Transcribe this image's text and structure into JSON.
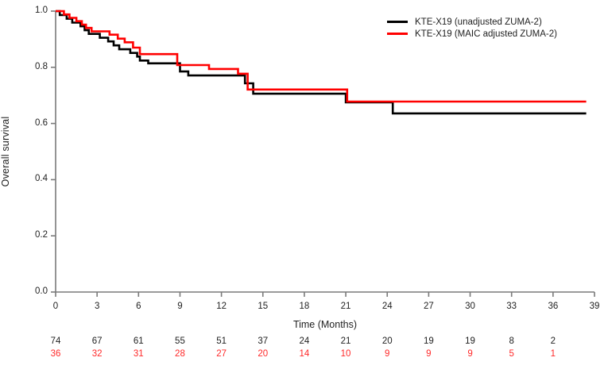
{
  "chart_data": {
    "type": "line",
    "subtype": "kaplan-meier-step",
    "title": "",
    "xlabel": "Time (Months)",
    "ylabel": "Overall survival",
    "xlim": [
      0,
      39
    ],
    "ylim": [
      0.0,
      1.0
    ],
    "grid": false,
    "legend_position": "top-right",
    "x_ticks": [
      "0",
      "3",
      "6",
      "9",
      "12",
      "15",
      "18",
      "21",
      "24",
      "27",
      "30",
      "33",
      "36",
      "39"
    ],
    "y_ticks": [
      "1.0",
      "0.8",
      "0.6",
      "0.4",
      "0.2",
      "0.0"
    ],
    "curve_end_month": 38.4,
    "series": [
      {
        "name": "KTE-X19 (unadjusted ZUMA-2)",
        "color": "#000000",
        "steps": [
          [
            0.0,
            1.0
          ],
          [
            0.3,
            0.986
          ],
          [
            0.8,
            0.973
          ],
          [
            1.2,
            0.959
          ],
          [
            1.8,
            0.946
          ],
          [
            2.1,
            0.932
          ],
          [
            2.4,
            0.919
          ],
          [
            3.2,
            0.905
          ],
          [
            3.8,
            0.892
          ],
          [
            4.2,
            0.878
          ],
          [
            4.6,
            0.864
          ],
          [
            5.4,
            0.851
          ],
          [
            5.9,
            0.838
          ],
          [
            6.1,
            0.824
          ],
          [
            6.7,
            0.814
          ],
          [
            9.0,
            0.785
          ],
          [
            9.6,
            0.771
          ],
          [
            13.7,
            0.743
          ],
          [
            14.3,
            0.706
          ],
          [
            21.0,
            0.675
          ],
          [
            24.4,
            0.636
          ],
          [
            38.4,
            0.636
          ]
        ]
      },
      {
        "name": "KTE-X19 (MAIC adjusted ZUMA-2)",
        "color": "#ff0000",
        "steps": [
          [
            0.0,
            1.0
          ],
          [
            0.6,
            0.988
          ],
          [
            1.0,
            0.976
          ],
          [
            1.5,
            0.964
          ],
          [
            1.9,
            0.952
          ],
          [
            2.2,
            0.94
          ],
          [
            2.6,
            0.928
          ],
          [
            3.9,
            0.916
          ],
          [
            4.5,
            0.902
          ],
          [
            5.0,
            0.889
          ],
          [
            5.6,
            0.87
          ],
          [
            6.1,
            0.847
          ],
          [
            8.8,
            0.808
          ],
          [
            11.1,
            0.794
          ],
          [
            13.2,
            0.777
          ],
          [
            13.9,
            0.721
          ],
          [
            21.1,
            0.678
          ],
          [
            38.4,
            0.678
          ]
        ]
      }
    ],
    "risk_table": {
      "times": [
        0,
        3,
        6,
        9,
        12,
        15,
        18,
        21,
        24,
        27,
        30,
        33,
        36
      ],
      "rows": [
        {
          "series": "KTE-X19 (unadjusted ZUMA-2)",
          "color": "#1f1f1f",
          "counts": [
            "74",
            "67",
            "61",
            "55",
            "51",
            "37",
            "24",
            "21",
            "20",
            "19",
            "19",
            "8",
            "2"
          ]
        },
        {
          "series": "KTE-X19 (MAIC adjusted ZUMA-2)",
          "color": "#ff2a2a",
          "counts": [
            "36",
            "32",
            "31",
            "28",
            "27",
            "20",
            "14",
            "10",
            "9",
            "9",
            "9",
            "5",
            "1"
          ]
        }
      ]
    },
    "axis_color": "#7a7a7a"
  },
  "legend": {
    "items": [
      {
        "label": "KTE-X19 (unadjusted ZUMA-2)"
      },
      {
        "label": "KTE-X19 (MAIC adjusted ZUMA-2)"
      }
    ]
  }
}
